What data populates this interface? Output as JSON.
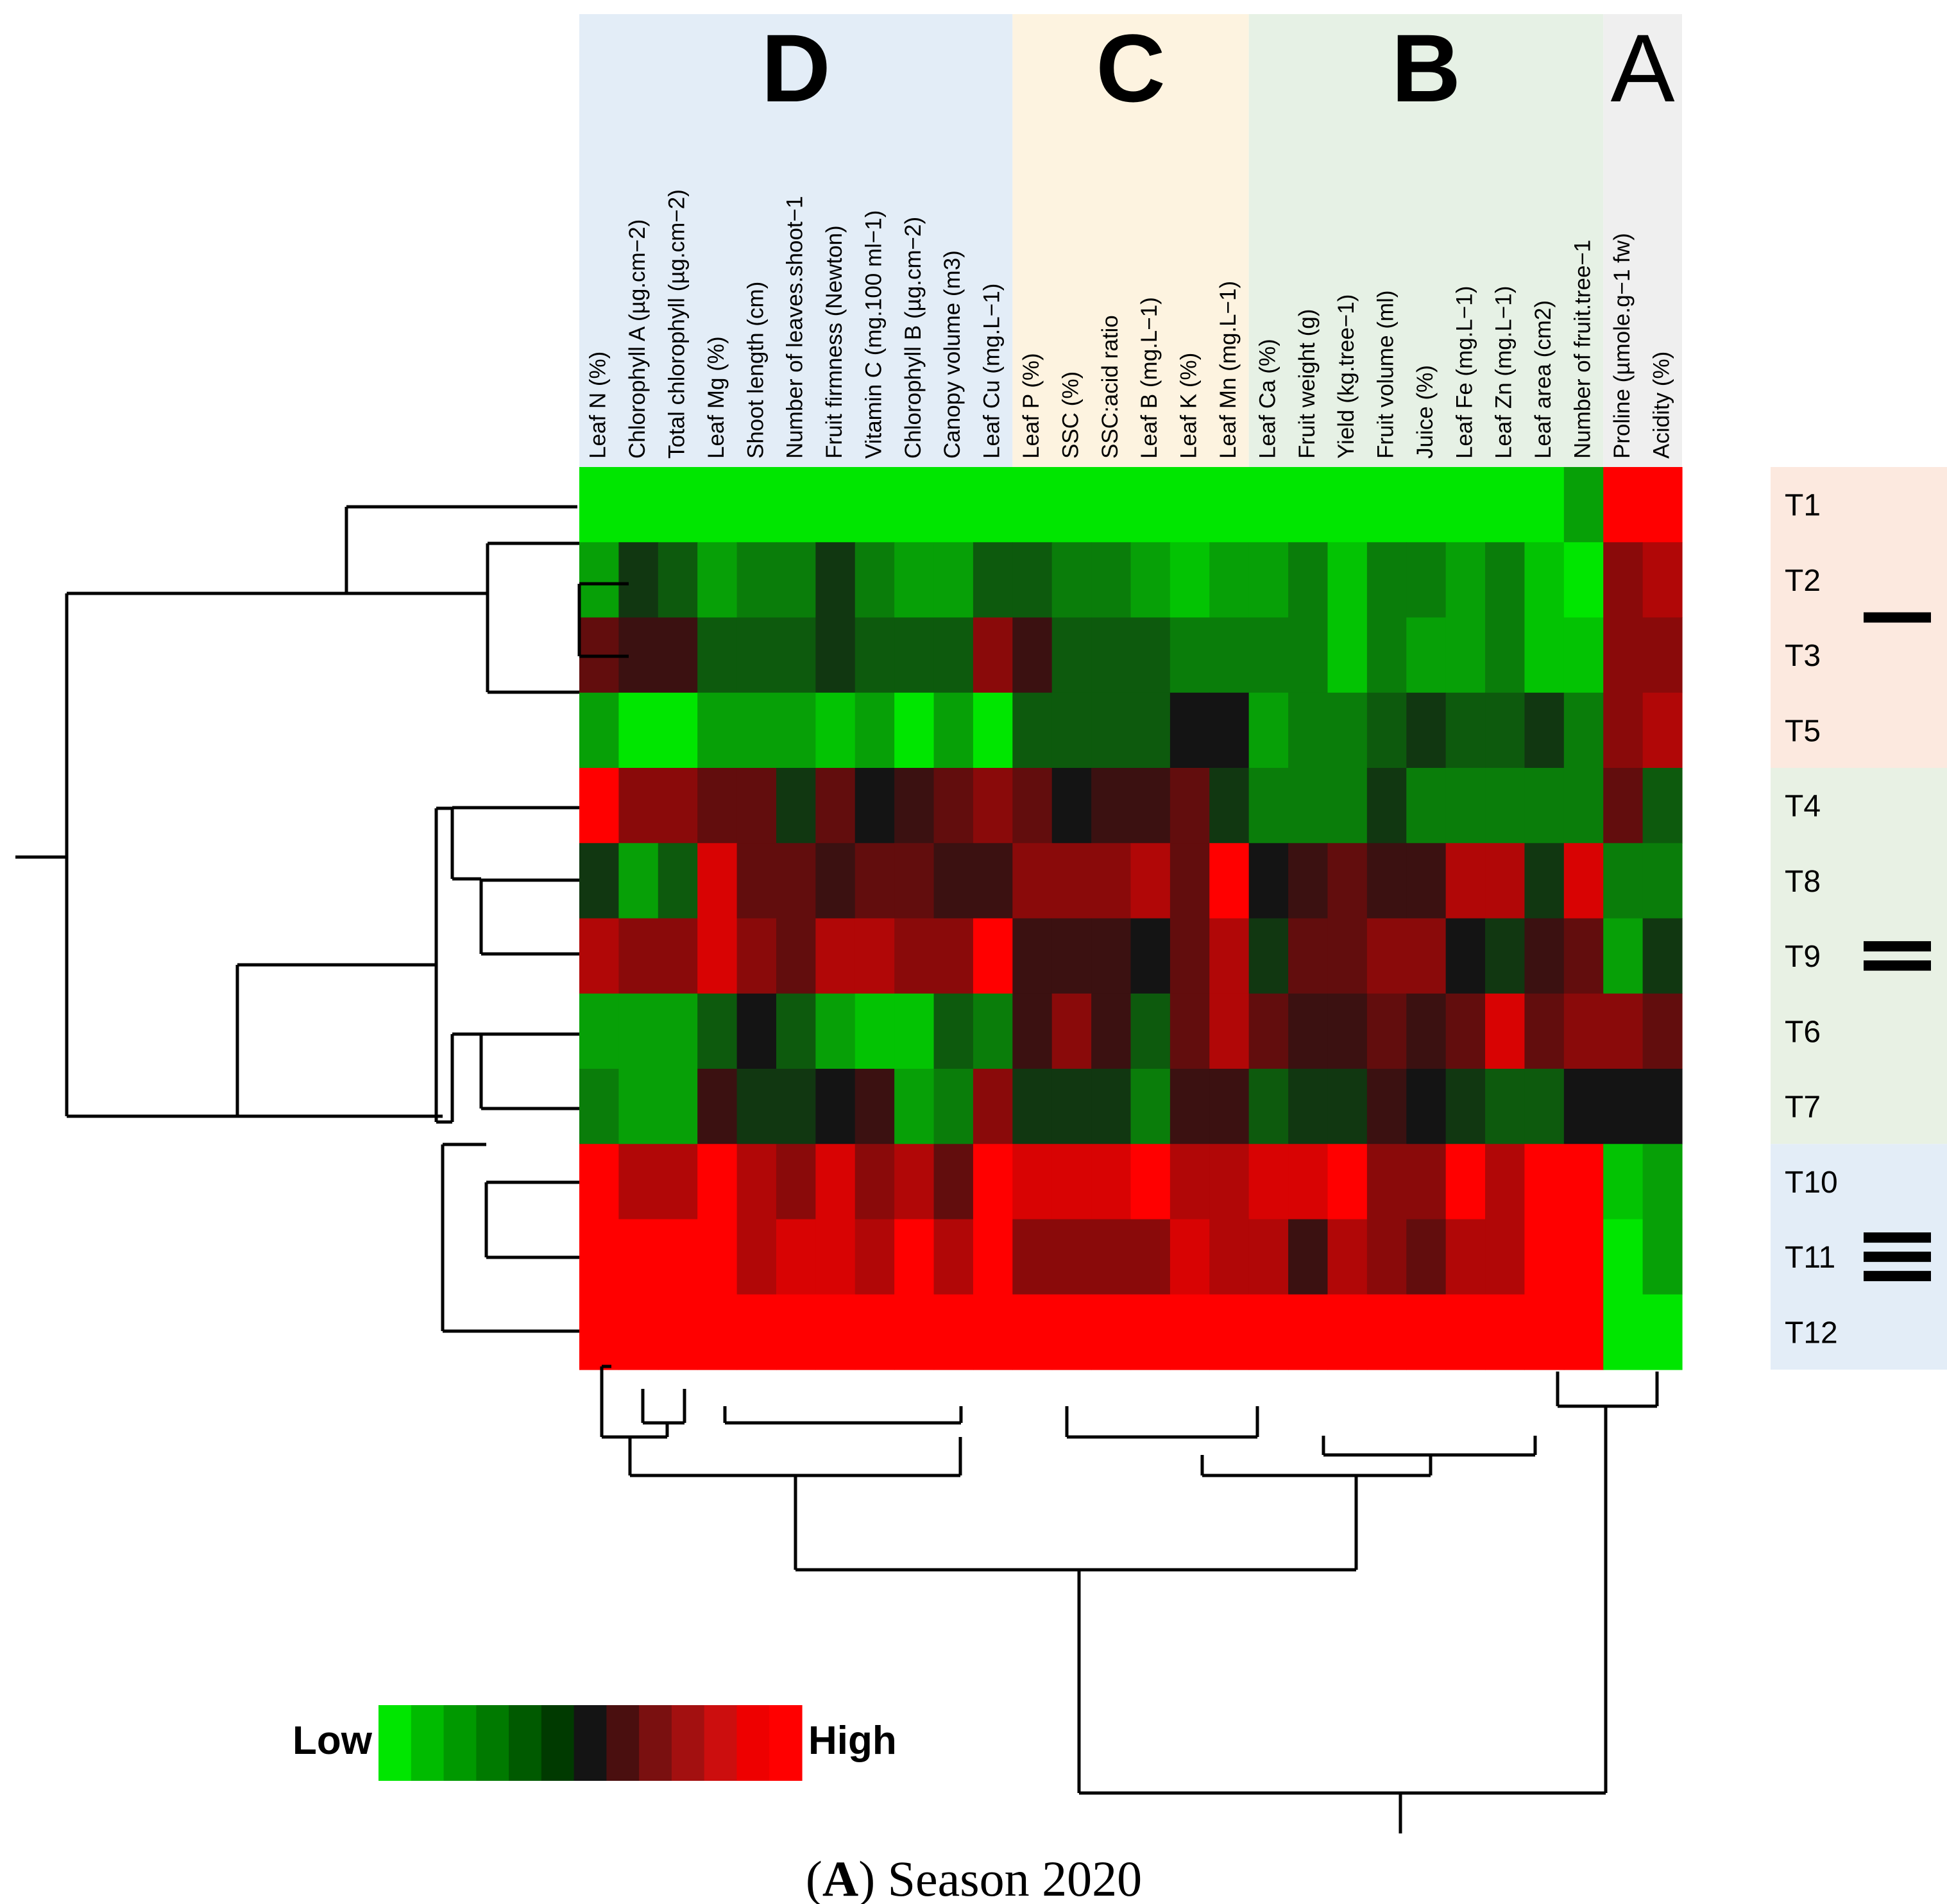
{
  "chart_data": {
    "type": "heatmap",
    "caption_prefix": "(",
    "caption_letter": "A",
    "caption_rest": ") Season 2020",
    "title": "Season 2020",
    "legend": {
      "low": "Low",
      "high": "High",
      "colors": [
        "#00e600",
        "#00bb00",
        "#009900",
        "#007a00",
        "#005a00",
        "#003a00",
        "#141414",
        "#4a0f0f",
        "#7a1010",
        "#a31010",
        "#cc0e0e",
        "#ee0000",
        "#ff0000"
      ]
    },
    "column_groups": [
      {
        "label": "D",
        "count": 11,
        "color": "#e3edf7"
      },
      {
        "label": "C",
        "count": 6,
        "color": "#fdf3e0"
      },
      {
        "label": "B",
        "count": 9,
        "color": "#e6f1e5"
      },
      {
        "label": "A",
        "count": 2,
        "color": "#efefef"
      }
    ],
    "columns": [
      "Leaf N  (%)",
      "Chlorophyll  A (µg.cm−2)",
      "Total chlorophyll (µg.cm−2)",
      "Leaf Mg (%)",
      "Shoot length (cm)",
      "Number of leaves.shoot−1",
      "Fruit firmness (Newton)",
      "Vitamin C (mg.100 ml−1)",
      "Chlorophyll B (µg.cm−2)",
      "Canopy volume (m3)",
      "Leaf Cu (mg.L−1)",
      "Leaf P (%)",
      "SSC (%)",
      "SSC:acid ratio",
      "Leaf B (mg.L−1)",
      "Leaf K (%)",
      "Leaf Mn (mg.L−1)",
      "Leaf Ca (%)",
      "Fruit weight (g)",
      "Yield (kg.tree−1)",
      "Fruit volume (ml)",
      "Juice (%)",
      "Leaf Fe (mg.L−1)",
      "Leaf Zn (mg.L−1)",
      "Leaf area (cm2)",
      "Number of fruit.tree−1",
      "Proline (µmole.g−1 fw)",
      "Acidity (%)"
    ],
    "rows": [
      "T1",
      "T2",
      "T3",
      "T5",
      "T4",
      "T8",
      "T9",
      "T6",
      "T7",
      "T10",
      "T11",
      "T12"
    ],
    "row_groups": [
      {
        "label": "I",
        "rows": 4,
        "bars": 1,
        "color": "#fce9df"
      },
      {
        "label": "II",
        "rows": 5,
        "bars": 2,
        "color": "#e8f1e4"
      },
      {
        "label": "III",
        "rows": 3,
        "bars": 3,
        "color": "#e3edf7"
      }
    ],
    "scale": "-6 = lowest (bright green), 0 = black, +6 = highest (bright red)",
    "values": [
      [
        -6,
        -6,
        -6,
        -6,
        -6,
        -6,
        -6,
        -6,
        -6,
        -6,
        -6,
        -6,
        -6,
        -6,
        -6,
        -6,
        -6,
        -6,
        -6,
        -6,
        -6,
        -6,
        -6,
        -6,
        -6,
        -4,
        6,
        6
      ],
      [
        -4,
        -1,
        -2,
        -4,
        -3,
        -3,
        -1,
        -3,
        -4,
        -4,
        -2,
        -2,
        -3,
        -3,
        -4,
        -5,
        -4,
        -4,
        -3,
        -5,
        -3,
        -3,
        -4,
        -3,
        -5,
        -6,
        3,
        4
      ],
      [
        2,
        1,
        1,
        -2,
        -2,
        -2,
        -1,
        -2,
        -2,
        -2,
        3,
        1,
        -2,
        -2,
        -2,
        -3,
        -3,
        -3,
        -3,
        -5,
        -3,
        -4,
        -4,
        -3,
        -5,
        -5,
        3,
        3
      ],
      [
        -4,
        -6,
        -6,
        -4,
        -4,
        -4,
        -5,
        -4,
        -6,
        -4,
        -6,
        -2,
        -2,
        -2,
        -2,
        0,
        0,
        -4,
        -3,
        -3,
        -2,
        -1,
        -2,
        -2,
        -1,
        -3,
        3,
        4
      ],
      [
        6,
        3,
        3,
        2,
        2,
        -1,
        2,
        0,
        1,
        2,
        3,
        2,
        0,
        1,
        1,
        2,
        -1,
        -3,
        -3,
        -3,
        -1,
        -3,
        -3,
        -3,
        -3,
        -3,
        2,
        -2
      ],
      [
        -1,
        -4,
        -2,
        5,
        2,
        2,
        1,
        2,
        2,
        1,
        1,
        3,
        3,
        3,
        4,
        2,
        6,
        0,
        1,
        2,
        1,
        1,
        4,
        4,
        -1,
        5,
        -3,
        -3
      ],
      [
        4,
        3,
        3,
        5,
        3,
        2,
        4,
        4,
        3,
        3,
        6,
        1,
        1,
        1,
        0,
        2,
        4,
        -1,
        2,
        2,
        3,
        3,
        0,
        -1,
        1,
        2,
        -4,
        -1
      ],
      [
        -4,
        -4,
        -4,
        -2,
        0,
        -2,
        -4,
        -5,
        -5,
        -2,
        -3,
        1,
        3,
        1,
        -2,
        2,
        4,
        2,
        1,
        1,
        2,
        1,
        2,
        5,
        2,
        3,
        3,
        2
      ],
      [
        -3,
        -4,
        -4,
        1,
        -1,
        -1,
        0,
        1,
        -4,
        -3,
        3,
        -1,
        -1,
        -1,
        -3,
        1,
        1,
        -2,
        -1,
        -1,
        1,
        0,
        -1,
        -2,
        -2,
        0,
        0,
        0
      ],
      [
        6,
        4,
        4,
        6,
        4,
        3,
        5,
        3,
        4,
        2,
        6,
        5,
        5,
        5,
        6,
        4,
        4,
        5,
        5,
        6,
        3,
        3,
        6,
        4,
        6,
        6,
        -5,
        -4
      ],
      [
        6,
        6,
        6,
        6,
        4,
        5,
        5,
        4,
        6,
        4,
        6,
        3,
        3,
        3,
        3,
        5,
        4,
        4,
        1,
        4,
        3,
        2,
        4,
        4,
        6,
        6,
        -6,
        -4
      ],
      [
        6,
        6,
        6,
        6,
        6,
        6,
        6,
        6,
        6,
        6,
        6,
        6,
        6,
        6,
        6,
        6,
        6,
        6,
        6,
        6,
        6,
        6,
        6,
        6,
        6,
        6,
        -6,
        -6
      ]
    ]
  }
}
